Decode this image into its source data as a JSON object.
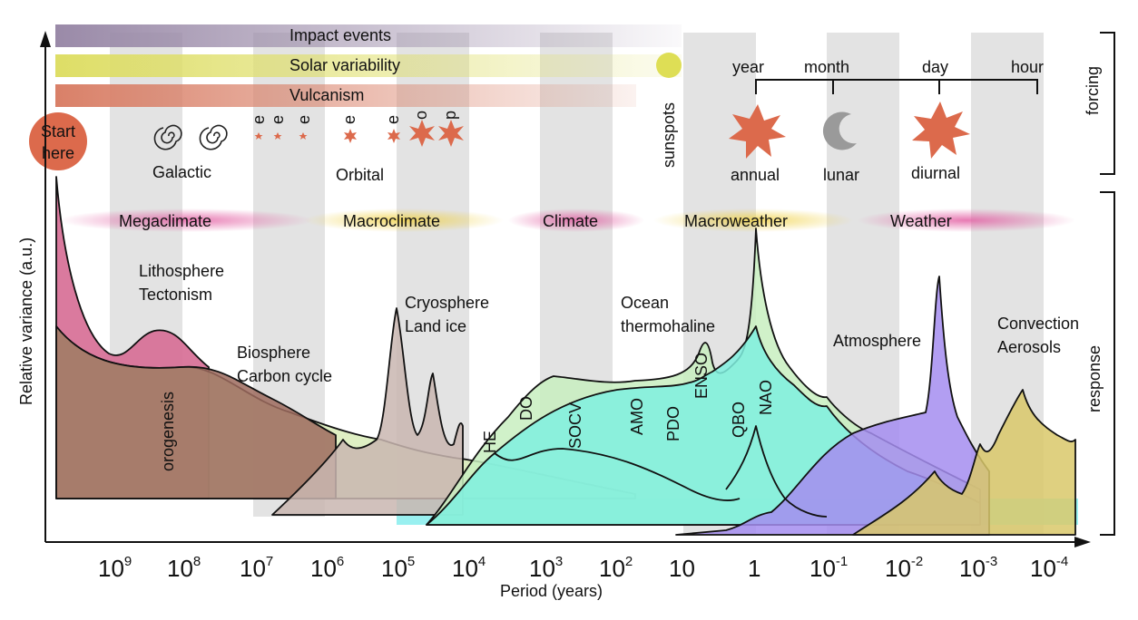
{
  "axes": {
    "xlabel": "Period (years)",
    "ylabel": "Relative variance (a.u.)",
    "ticks": [
      {
        "base": "10",
        "exp": "9"
      },
      {
        "base": "10",
        "exp": "8"
      },
      {
        "base": "10",
        "exp": "7"
      },
      {
        "base": "10",
        "exp": "6"
      },
      {
        "base": "10",
        "exp": "5"
      },
      {
        "base": "10",
        "exp": "4"
      },
      {
        "base": "10",
        "exp": "3"
      },
      {
        "base": "10",
        "exp": "2"
      },
      {
        "base": "10",
        "exp": ""
      },
      {
        "base": "1",
        "exp": ""
      },
      {
        "base": "10",
        "exp": "-1"
      },
      {
        "base": "10",
        "exp": "-2"
      },
      {
        "base": "10",
        "exp": "-3"
      },
      {
        "base": "10",
        "exp": "-4"
      }
    ]
  },
  "side_labels": {
    "forcing": "forcing",
    "response": "response"
  },
  "start": {
    "line1": "Start",
    "line2": "here"
  },
  "forcing_bars": {
    "impact": "Impact events",
    "solar": "Solar variability",
    "vulcanism": "Vulcanism",
    "sunspots": "sunspots"
  },
  "timescale": {
    "year": "year",
    "month": "month",
    "day": "day",
    "hour": "hour"
  },
  "forcing_icons": {
    "galactic": "Galactic",
    "orbital": "Orbital",
    "annual": "annual",
    "lunar": "lunar",
    "diurnal": "diurnal",
    "letter_e": "e",
    "letter_o": "o",
    "letter_p": "p"
  },
  "regimes": {
    "megaclimate": "Megaclimate",
    "macroclimate": "Macroclimate",
    "climate": "Climate",
    "macroweather": "Macroweather",
    "weather": "Weather"
  },
  "responses": {
    "litho1": "Lithosphere",
    "litho2": "Tectonism",
    "bio1": "Biosphere",
    "bio2": "Carbon cycle",
    "cryo1": "Cryosphere",
    "cryo2": "Land ice",
    "ocean1": "Ocean",
    "ocean2": "thermohaline",
    "atmos": "Atmosphere",
    "conv1": "Convection",
    "conv2": "Aerosols",
    "orogenesis": "orogenesis"
  },
  "modes": {
    "he": "HE",
    "do": "DO",
    "socv": "SOCV",
    "amo": "AMO",
    "pdo": "PDO",
    "enso": "ENSO",
    "qbo": "QBO",
    "nao": "NAO"
  },
  "colors": {
    "litho": "#d66b93",
    "orogen": "#9e6b5e",
    "bio": "#d9ecb8",
    "cryo": "#c9b6b0",
    "ocean": "#7ff0df",
    "cyan": "#8cf2f2",
    "atmos": "#a58df0",
    "conv": "#d9c86a",
    "star": "#dc6a4c",
    "start": "#dc6a4c"
  }
}
